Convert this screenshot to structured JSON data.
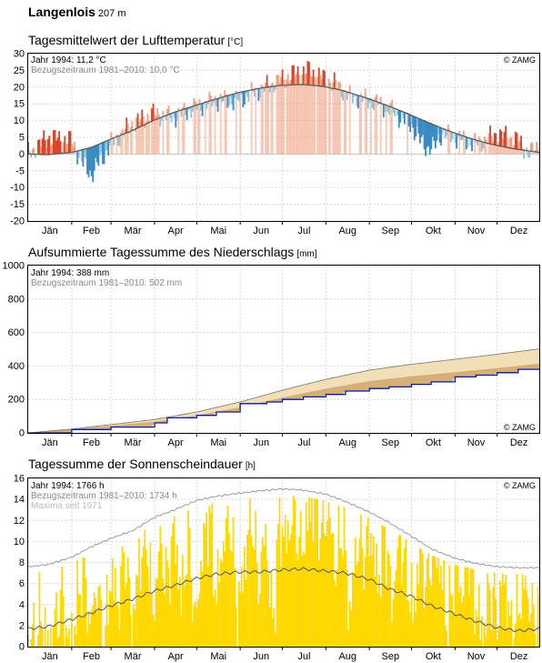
{
  "station": {
    "name": "Langenlois",
    "elevation": "207 m"
  },
  "months": [
    "Jän",
    "Feb",
    "Mär",
    "Apr",
    "Mai",
    "Jun",
    "Jul",
    "Aug",
    "Sep",
    "Okt",
    "Nov",
    "Dez"
  ],
  "copyright": "© ZAMG",
  "colors": {
    "warm_anomaly": "#f0a080",
    "warm_strong": "#d9442a",
    "cold_anomaly": "#8ec4de",
    "cold_strong": "#3a8bc2",
    "normal_line": "#555555",
    "precip_year": "#0a1a9c",
    "precip_normal_fill": "#f2dfb8",
    "precip_mid_fill": "#cfa060",
    "sun_bar": "#ffd800",
    "sun_max_line": "#9a9a9a"
  },
  "temperature": {
    "title": "Tagesmittelwert der Lufttemperatur",
    "unit": "[°C]",
    "legend_year": "Jahr 1994: 11,2 °C",
    "legend_ref": "Bezugszeitraum 1981–2010: 10,0 °C",
    "y_ticks": [
      "30",
      "25",
      "20",
      "15",
      "10",
      "5",
      "0",
      "-5",
      "-10",
      "-15",
      "-20"
    ]
  },
  "precipitation": {
    "title": "Aufsummierte Tagessumme des Niederschlags",
    "unit": "[mm]",
    "legend_year": "Jahr 1994: 388 mm",
    "legend_ref": "Bezugszeitraum 1981–2010: 502 mm",
    "y_ticks": [
      "1000",
      "800",
      "600",
      "400",
      "200",
      "0"
    ]
  },
  "sunshine": {
    "title": "Tagessumme der Sonnenscheindauer",
    "unit": "[h]",
    "legend_year": "Jahr 1994: 1766 h",
    "legend_ref": "Bezugszeitraum 1981–2010: 1734 h",
    "legend_max": "Maxima seit 1971",
    "y_ticks": [
      "16",
      "14",
      "12",
      "10",
      "8",
      "6",
      "4",
      "2",
      "0"
    ]
  },
  "chart_data": [
    {
      "type": "area",
      "title": "Tagesmittelwert der Lufttemperatur",
      "ylabel": "[°C]",
      "ylim": [
        -20,
        30
      ],
      "x_unit": "month",
      "grid": true,
      "series": [
        {
          "name": "Jahr 1994: 11,2 °C",
          "x": [
            1,
            15,
            32,
            40,
            46,
            60,
            75,
            90,
            105,
            120,
            135,
            150,
            165,
            180,
            190,
            200,
            210,
            220,
            230,
            245,
            260,
            275,
            280,
            285,
            290,
            295,
            305,
            320,
            335,
            350,
            358,
            365
          ],
          "values": [
            0,
            5,
            4,
            -3,
            -6,
            3,
            9,
            12,
            11,
            14,
            16,
            16,
            19,
            22,
            24,
            25,
            23,
            21,
            17,
            16,
            13,
            8,
            4,
            2,
            2,
            6,
            5,
            3,
            6,
            4,
            0,
            3
          ]
        },
        {
          "name": "Bezugszeitraum 1981–2010: 10,0 °C",
          "x": [
            1,
            15,
            32,
            46,
            60,
            75,
            90,
            105,
            120,
            135,
            150,
            165,
            180,
            196,
            210,
            225,
            240,
            255,
            270,
            285,
            300,
            315,
            330,
            345,
            365
          ],
          "values": [
            0,
            -0.2,
            0.5,
            2,
            4.5,
            7,
            10,
            12.5,
            14.5,
            16.5,
            18.3,
            19.6,
            20.5,
            20.8,
            20.3,
            19,
            17,
            14.8,
            12.3,
            9.6,
            7,
            4.8,
            3,
            1.7,
            0.5
          ]
        }
      ]
    },
    {
      "type": "line",
      "title": "Aufsummierte Tagessumme des Niederschlags",
      "ylabel": "[mm]",
      "ylim": [
        0,
        1000
      ],
      "x_unit": "month",
      "grid": true,
      "series": [
        {
          "name": "Jahr 1994: 388 mm",
          "x": [
            1,
            32,
            60,
            91,
            100,
            121,
            135,
            152,
            171,
            182,
            197,
            213,
            227,
            244,
            258,
            274,
            288,
            305,
            320,
            335,
            350,
            365
          ],
          "values": [
            0,
            20,
            35,
            60,
            90,
            105,
            125,
            175,
            185,
            200,
            215,
            230,
            250,
            265,
            275,
            290,
            305,
            335,
            345,
            360,
            380,
            388
          ]
        },
        {
          "name": "Bezugszeitraum 1981–2010: 502 mm",
          "x": [
            1,
            32,
            60,
            91,
            121,
            152,
            182,
            213,
            244,
            274,
            305,
            335,
            365
          ],
          "values": [
            0,
            23,
            50,
            80,
            125,
            185,
            255,
            320,
            375,
            410,
            440,
            470,
            502
          ]
        }
      ]
    },
    {
      "type": "bar",
      "title": "Tagessumme der Sonnenscheindauer",
      "ylabel": "[h]",
      "ylim": [
        0,
        16
      ],
      "x_unit": "month",
      "grid": true,
      "series": [
        {
          "name": "Jahr 1994: 1766 h",
          "x": [
            5,
            10,
            15,
            20,
            25,
            30,
            35,
            40,
            45,
            50,
            55,
            60,
            65,
            70,
            75,
            80,
            85,
            90,
            95,
            100,
            105,
            110,
            115,
            120,
            125,
            130,
            135,
            140,
            145,
            150,
            155,
            160,
            165,
            170,
            175,
            180,
            185,
            190,
            195,
            200,
            205,
            210,
            215,
            220,
            225,
            230,
            235,
            240,
            245,
            250,
            255,
            260,
            265,
            270,
            275,
            280,
            285,
            290,
            295,
            300,
            305,
            310,
            315,
            320,
            325,
            330,
            335,
            340,
            345,
            350,
            355,
            360
          ],
          "values": [
            1,
            3,
            0,
            2,
            5,
            0,
            3,
            8,
            2,
            6,
            0,
            7,
            4,
            9,
            2,
            8,
            11,
            3,
            10,
            6,
            12,
            4,
            11,
            2,
            9,
            13,
            5,
            10,
            12,
            3,
            8,
            13,
            6,
            11,
            2,
            12,
            10,
            13,
            9,
            12,
            14,
            11,
            13,
            7,
            12,
            3,
            10,
            9,
            11,
            6,
            12,
            4,
            10,
            8,
            3,
            9,
            6,
            11,
            7,
            2,
            8,
            5,
            9,
            4,
            1,
            6,
            3,
            7,
            1,
            4,
            6,
            3
          ]
        },
        {
          "name": "Bezugszeitraum 1981–2010: 1734 h",
          "x": [
            1,
            15,
            32,
            46,
            60,
            75,
            91,
            105,
            121,
            135,
            152,
            165,
            182,
            196,
            213,
            227,
            244,
            258,
            274,
            288,
            305,
            320,
            335,
            350,
            365
          ],
          "values": [
            1.7,
            1.9,
            2.6,
            3.2,
            3.9,
            4.5,
            5.3,
            5.8,
            6.5,
            6.9,
            7.1,
            7.1,
            7.3,
            7.4,
            7.2,
            7.0,
            6.4,
            5.5,
            4.8,
            3.9,
            3.1,
            2.4,
            1.8,
            1.5,
            1.7
          ]
        },
        {
          "name": "Maxima seit 1971",
          "x": [
            1,
            15,
            32,
            46,
            60,
            75,
            91,
            105,
            121,
            135,
            152,
            165,
            182,
            196,
            213,
            227,
            244,
            258,
            274,
            288,
            305,
            320,
            335,
            350,
            365
          ],
          "values": [
            7.6,
            7.8,
            8.5,
            9.5,
            10.3,
            11.0,
            12.3,
            13.0,
            13.9,
            14.3,
            14.6,
            14.8,
            15.0,
            14.9,
            14.5,
            13.8,
            12.8,
            11.8,
            10.5,
            9.3,
            8.4,
            7.9,
            7.6,
            7.5,
            7.5
          ]
        }
      ]
    }
  ]
}
